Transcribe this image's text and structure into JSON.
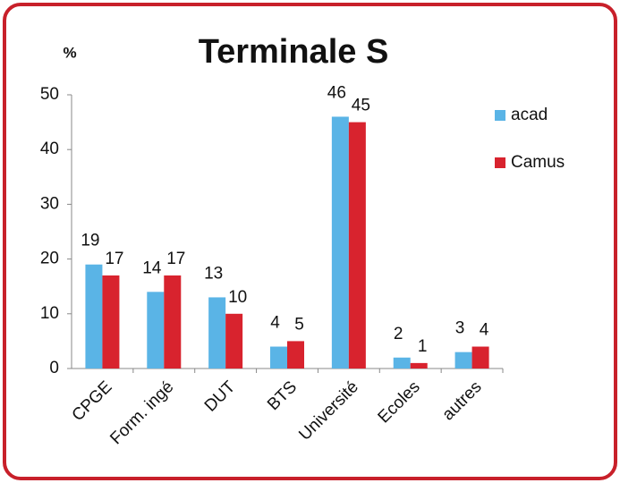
{
  "chart_data": {
    "type": "bar",
    "title": "Terminale S",
    "y_label": "%",
    "categories": [
      "CPGE",
      "Form. ingé",
      "DUT",
      "BTS",
      "Université",
      "Ecoles",
      "autres"
    ],
    "series": [
      {
        "name": "acad",
        "color": "#5ab4e6",
        "values": [
          19,
          14,
          13,
          4,
          46,
          2,
          3
        ]
      },
      {
        "name": "Camus",
        "color": "#d8232e",
        "values": [
          17,
          17,
          10,
          5,
          45,
          1,
          4
        ]
      }
    ],
    "ylim": [
      0,
      50
    ],
    "yticks": [
      0,
      10,
      20,
      30,
      40,
      50
    ],
    "grid": false,
    "legend": "right"
  }
}
